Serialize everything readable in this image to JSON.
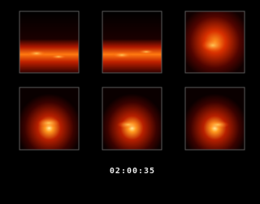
{
  "timestamp": "02:00:35"
}
